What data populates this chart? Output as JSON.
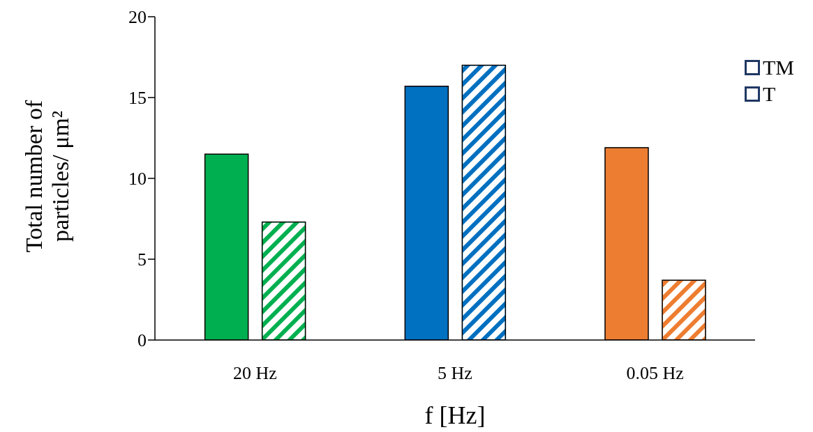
{
  "chart_data": {
    "type": "bar",
    "xlabel": "f [Hz]",
    "ylabel": "Total number of particles/ μm²",
    "categories": [
      "20 Hz",
      "5 Hz",
      "0.05 Hz"
    ],
    "series": [
      {
        "name": "TM",
        "color": "#203864",
        "colors": [
          "#00b050",
          "#0070c0",
          "#ed7d31"
        ],
        "values": [
          11.5,
          15.7,
          11.9
        ]
      },
      {
        "name": "T",
        "color": "#203864",
        "colors": [
          "#00b050",
          "#0070c0",
          "#ed7d31"
        ],
        "values": [
          7.3,
          17.0,
          3.7
        ]
      }
    ],
    "ylim": [
      0,
      20
    ],
    "yticks": [
      0,
      5,
      10,
      15,
      20
    ],
    "grid": false,
    "legend": "top right"
  }
}
